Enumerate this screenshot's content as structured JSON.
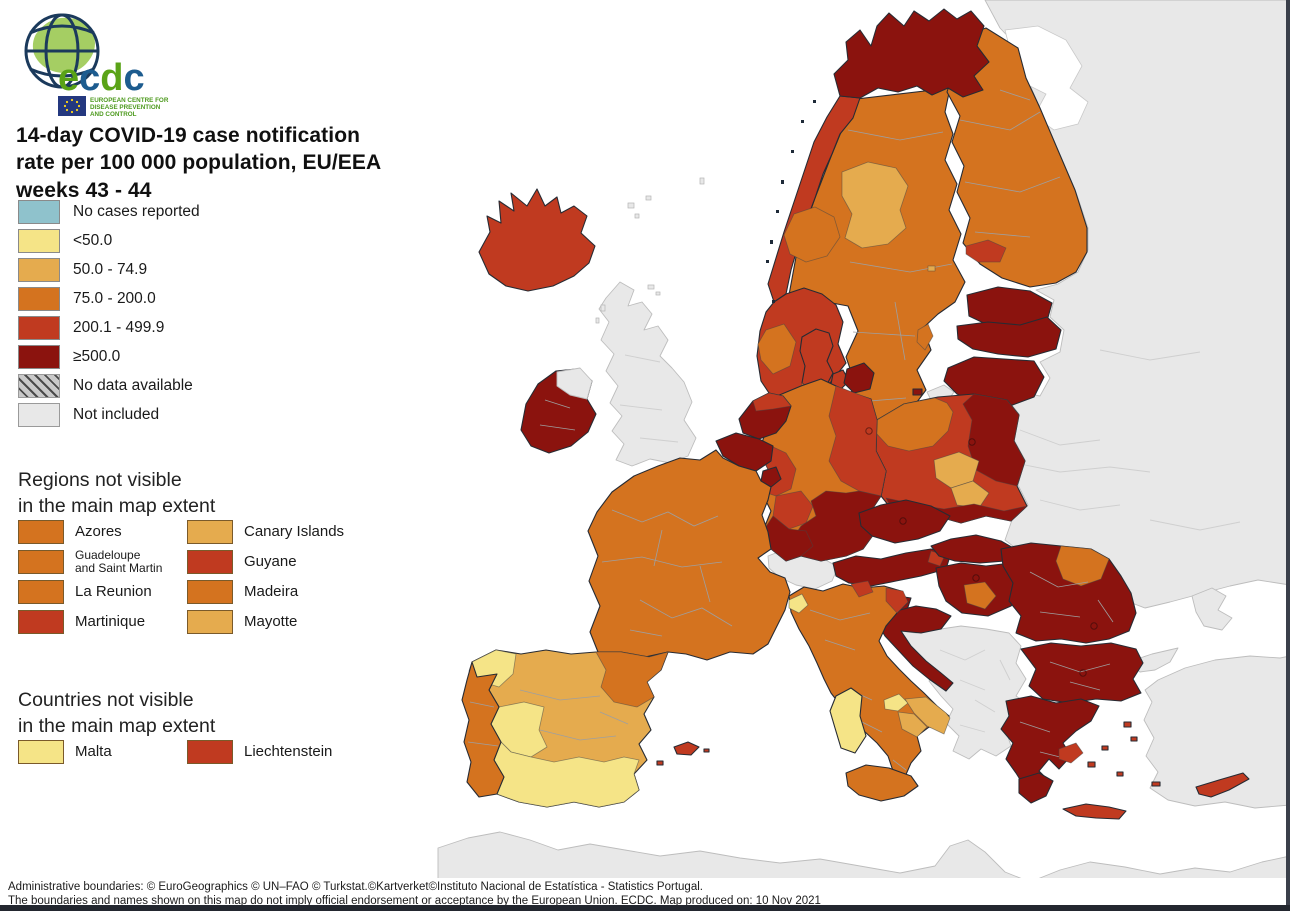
{
  "logo": {
    "brand": "ecdc",
    "org_line1": "EUROPEAN CENTRE FOR",
    "org_line2": "DISEASE PREVENTION",
    "org_line3": "AND CONTROL",
    "green": "#5aa317",
    "navy": "#1d5c8f"
  },
  "title": {
    "line1": "14-day COVID-19 case notification",
    "line2": "rate per 100 000 population, EU/EEA",
    "line3": "weeks 43 - 44"
  },
  "legend": {
    "items": [
      {
        "label": "No cases reported",
        "cat": "no_cases"
      },
      {
        "label": "<50.0",
        "cat": "lt_50"
      },
      {
        "label": "50.0 - 74.9",
        "cat": "50_74"
      },
      {
        "label": "75.0 - 200.0",
        "cat": "75_200"
      },
      {
        "label": "200.1 - 499.9",
        "cat": "200_499"
      },
      {
        "label": "≥500.0",
        "cat": "ge_500"
      },
      {
        "label": "No data available",
        "cat": "no_data"
      },
      {
        "label": "Not included",
        "cat": "not_included"
      }
    ]
  },
  "regions_section": {
    "heading_line1": "Regions not visible",
    "heading_line2": "in the main map extent",
    "items": [
      {
        "label": "Azores",
        "cat": "75_200"
      },
      {
        "label": "Canary Islands",
        "cat": "50_74"
      },
      {
        "label": "Guadeloupe\nand Saint Martin",
        "cat": "75_200"
      },
      {
        "label": "Guyane",
        "cat": "200_499"
      },
      {
        "label": "La Reunion",
        "cat": "75_200"
      },
      {
        "label": "Madeira",
        "cat": "75_200"
      },
      {
        "label": "Martinique",
        "cat": "200_499"
      },
      {
        "label": "Mayotte",
        "cat": "50_74"
      }
    ]
  },
  "countries_section": {
    "heading_line1": "Countries not visible",
    "heading_line2": "in the main map extent",
    "items": [
      {
        "label": "Malta",
        "cat": "lt_50"
      },
      {
        "label": "Liechtenstein",
        "cat": "200_499"
      }
    ]
  },
  "footer": {
    "line1": "Administrative boundaries: © EuroGeographics © UN–FAO © Turkstat.©Kartverket©Instituto Nacional de Estatística - Statistics Portugal.",
    "line2": "The boundaries and names shown on this map do not imply official endorsement or acceptance by the European Union. ECDC. Map produced on: 10 Nov 2021"
  },
  "map": {
    "palette": {
      "no_cases": "#8fc2cc",
      "lt_50": "#f5e487",
      "50_74": "#e5ab4e",
      "75_200": "#d4731f",
      "200_499": "#c03a20",
      "ge_500": "#8b130e",
      "no_data": "#c9c9c9",
      "not_included": "#e8e8e8"
    },
    "hatch_color": "#4a4a4a",
    "regions": [
      {
        "id": "russia",
        "name": "Russia / eastern neighbourhood",
        "cat": "not_included"
      },
      {
        "id": "crimea",
        "name": "Crimea",
        "cat": "not_included"
      },
      {
        "id": "moldova",
        "name": "Moldova",
        "cat": "not_included"
      },
      {
        "id": "turkey-eu",
        "name": "Turkey (European part)",
        "cat": "not_included"
      },
      {
        "id": "turkey",
        "name": "Turkey",
        "cat": "not_included"
      },
      {
        "id": "north-africa",
        "name": "North Africa",
        "cat": "not_included"
      },
      {
        "id": "uk",
        "name": "United Kingdom",
        "cat": "not_included"
      },
      {
        "id": "northern-ireland",
        "name": "Northern Ireland",
        "cat": "not_included"
      },
      {
        "id": "switzerland",
        "name": "Switzerland",
        "cat": "not_included"
      },
      {
        "id": "western-balkans",
        "name": "Western Balkans",
        "cat": "not_included"
      },
      {
        "id": "kaliningrad",
        "name": "Kaliningrad",
        "cat": "not_included"
      },
      {
        "id": "iceland",
        "name": "Iceland",
        "cat": "200_499"
      },
      {
        "id": "ireland",
        "name": "Ireland",
        "cat": "ge_500"
      },
      {
        "id": "norway-finnmark",
        "name": "Northern Norway",
        "cat": "ge_500"
      },
      {
        "id": "norway-coast",
        "name": "Norway coast",
        "cat": "200_499"
      },
      {
        "id": "norway-trondelag",
        "name": "Trondelag",
        "cat": "75_200"
      },
      {
        "id": "norway-south",
        "name": "Southern Norway",
        "cat": "200_499"
      },
      {
        "id": "norway-southwest",
        "name": "South-west Norway",
        "cat": "75_200"
      },
      {
        "id": "sweden",
        "name": "Sweden",
        "cat": "75_200"
      },
      {
        "id": "sweden-jamtland",
        "name": "Jamtland",
        "cat": "50_74"
      },
      {
        "id": "gotland",
        "name": "Gotland",
        "cat": "75_200"
      },
      {
        "id": "finland",
        "name": "Finland",
        "cat": "75_200"
      },
      {
        "id": "finland-south",
        "name": "Southern Finland",
        "cat": "200_499"
      },
      {
        "id": "aland",
        "name": "Aland",
        "cat": "50_74"
      },
      {
        "id": "estonia",
        "name": "Estonia",
        "cat": "ge_500"
      },
      {
        "id": "latvia",
        "name": "Latvia",
        "cat": "ge_500"
      },
      {
        "id": "lithuania",
        "name": "Lithuania",
        "cat": "ge_500"
      },
      {
        "id": "denmark-jutland",
        "name": "Jutland",
        "cat": "200_499"
      },
      {
        "id": "denmark-south",
        "name": "Southern Denmark",
        "cat": "75_200"
      },
      {
        "id": "denmark-funen",
        "name": "Funen",
        "cat": "200_499"
      },
      {
        "id": "denmark-zealand",
        "name": "Zealand",
        "cat": "ge_500"
      },
      {
        "id": "bornholm",
        "name": "Bornholm",
        "cat": "ge_500"
      },
      {
        "id": "poland",
        "name": "Poland",
        "cat": "200_499"
      },
      {
        "id": "poland-northwest",
        "name": "North-west Poland",
        "cat": "75_200"
      },
      {
        "id": "poland-east",
        "name": "Eastern Poland",
        "cat": "ge_500"
      },
      {
        "id": "poland-center-a",
        "name": "Central Poland A",
        "cat": "50_74"
      },
      {
        "id": "poland-center-b",
        "name": "Central Poland B",
        "cat": "50_74"
      },
      {
        "id": "poland-south",
        "name": "Southern Poland",
        "cat": "ge_500"
      },
      {
        "id": "germany",
        "name": "Germany",
        "cat": "75_200"
      },
      {
        "id": "germany-east",
        "name": "Eastern Germany",
        "cat": "200_499"
      },
      {
        "id": "germany-nrw",
        "name": "North Rhine-Westphalia",
        "cat": "200_499"
      },
      {
        "id": "germany-hesse",
        "name": "Hesse",
        "cat": "200_499"
      },
      {
        "id": "germany-south",
        "name": "Bavaria / Saxony",
        "cat": "ge_500"
      },
      {
        "id": "germany-southwest",
        "name": "Baden-Wurttemberg",
        "cat": "ge_500"
      },
      {
        "id": "netherlands",
        "name": "Netherlands",
        "cat": "ge_500"
      },
      {
        "id": "netherlands-north",
        "name": "Northern Netherlands",
        "cat": "200_499"
      },
      {
        "id": "belgium",
        "name": "Belgium",
        "cat": "ge_500"
      },
      {
        "id": "luxembourg",
        "name": "Luxembourg",
        "cat": "ge_500"
      },
      {
        "id": "france",
        "name": "France",
        "cat": "75_200"
      },
      {
        "id": "corsica",
        "name": "Corsica",
        "cat": "75_200"
      },
      {
        "id": "czechia",
        "name": "Czechia",
        "cat": "ge_500"
      },
      {
        "id": "austria",
        "name": "Austria",
        "cat": "ge_500"
      },
      {
        "id": "austria-east",
        "name": "Vienna region",
        "cat": "200_499"
      },
      {
        "id": "slovakia",
        "name": "Slovakia",
        "cat": "ge_500"
      },
      {
        "id": "hungary",
        "name": "Hungary",
        "cat": "ge_500"
      },
      {
        "id": "hungary-center",
        "name": "Central Hungary",
        "cat": "75_200"
      },
      {
        "id": "slovenia",
        "name": "Slovenia",
        "cat": "ge_500"
      },
      {
        "id": "croatia",
        "name": "Croatia",
        "cat": "ge_500"
      },
      {
        "id": "romania",
        "name": "Romania",
        "cat": "ge_500"
      },
      {
        "id": "romania-northeast",
        "name": "North-east Romania",
        "cat": "75_200"
      },
      {
        "id": "bulgaria",
        "name": "Bulgaria",
        "cat": "ge_500"
      },
      {
        "id": "greece",
        "name": "Greece",
        "cat": "ge_500"
      },
      {
        "id": "peloponnese",
        "name": "Peloponnese",
        "cat": "ge_500"
      },
      {
        "id": "attica",
        "name": "Attica",
        "cat": "200_499"
      },
      {
        "id": "crete",
        "name": "Crete",
        "cat": "200_499"
      },
      {
        "id": "aegean-islands",
        "name": "Aegean islands",
        "cat": "200_499"
      },
      {
        "id": "cyprus",
        "name": "Cyprus",
        "cat": "200_499"
      },
      {
        "id": "italy",
        "name": "Italy",
        "cat": "75_200"
      },
      {
        "id": "aosta",
        "name": "Aosta Valley",
        "cat": "lt_50"
      },
      {
        "id": "south-tyrol",
        "name": "South Tyrol",
        "cat": "200_499"
      },
      {
        "id": "friuli",
        "name": "Friuli-Venezia Giulia",
        "cat": "200_499"
      },
      {
        "id": "molise",
        "name": "Molise",
        "cat": "lt_50"
      },
      {
        "id": "puglia",
        "name": "Puglia",
        "cat": "50_74"
      },
      {
        "id": "basilicata",
        "name": "Basilicata",
        "cat": "50_74"
      },
      {
        "id": "sicily",
        "name": "Sicily",
        "cat": "75_200"
      },
      {
        "id": "sardinia",
        "name": "Sardinia",
        "cat": "lt_50"
      },
      {
        "id": "spain",
        "name": "Spain",
        "cat": "50_74"
      },
      {
        "id": "galicia",
        "name": "Galicia",
        "cat": "lt_50"
      },
      {
        "id": "catalonia-aragon",
        "name": "Catalonia / Aragon",
        "cat": "75_200"
      },
      {
        "id": "extremadura",
        "name": "Extremadura",
        "cat": "lt_50"
      },
      {
        "id": "andalusia",
        "name": "Andalusia",
        "cat": "lt_50"
      },
      {
        "id": "balearics",
        "name": "Balearic Islands",
        "cat": "200_499"
      },
      {
        "id": "portugal",
        "name": "Portugal",
        "cat": "75_200"
      }
    ]
  }
}
